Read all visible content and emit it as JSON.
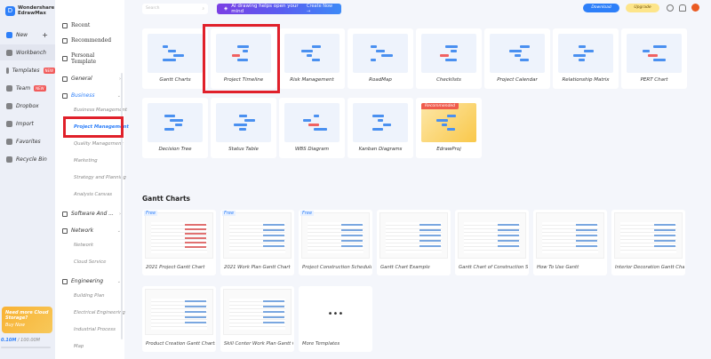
{
  "app": {
    "brand_line1": "Wondershare",
    "brand_line2": "EdrawMax"
  },
  "sidebar": {
    "new": "New",
    "items": [
      {
        "label": "Workbench"
      },
      {
        "label": "Templates",
        "badge": "NEW"
      },
      {
        "label": "Team",
        "badge": "NEW"
      },
      {
        "label": "Dropbox"
      },
      {
        "label": "Import"
      },
      {
        "label": "Favorites"
      },
      {
        "label": "Recycle Bin"
      }
    ],
    "promo": {
      "title": "Need more Cloud Storage?",
      "cta": "Buy Now"
    },
    "storage_used": "0.10M",
    "storage_total": "/ 100.00M"
  },
  "subnav": {
    "top": [
      "Recent",
      "Recommended",
      "Personal Template"
    ],
    "categories": [
      {
        "label": "General"
      },
      {
        "label": "Business",
        "children": [
          "Business Management",
          "Project Management",
          "Quality Management",
          "Marketing",
          "Strategy and Planning",
          "Analysis Canvas"
        ]
      },
      {
        "label": "Software And ..."
      },
      {
        "label": "Network",
        "children": [
          "Network",
          "Cloud Service"
        ]
      },
      {
        "label": "Engineering",
        "children": [
          "Building Plan",
          "Electrical Engineering",
          "Industrial Process",
          "Map"
        ]
      }
    ]
  },
  "topbar": {
    "search_placeholder": "Search",
    "ai_banner": "AI drawing helps open your mind",
    "ai_cta": "Create Now →",
    "download": "Download",
    "upgrade": "Upgrade"
  },
  "templates": [
    "Gantt Charts",
    "Project Timeline",
    "Risk Management",
    "RoadMap",
    "Checklists",
    "Project Calendar",
    "Relationship Matrix",
    "PERT Chart",
    "Decision Tree",
    "Status Table",
    "WBS Diagram",
    "Kanban Diagrams",
    "EdrawProj"
  ],
  "recommended_badge": "Recommended",
  "gantt": {
    "title": "Gantt Charts",
    "free_label": "Free",
    "items": [
      {
        "label": "2021 Project Gantt Chart",
        "free": true
      },
      {
        "label": "2021 Work Plan Gantt Chart",
        "free": true
      },
      {
        "label": "Project Construction Schedule",
        "free": true
      },
      {
        "label": "Gantt Chart Example"
      },
      {
        "label": "Gantt Chart of Construction Sc..."
      },
      {
        "label": "How To Use Gantt"
      },
      {
        "label": "Interior Decoration Gantt Chart"
      },
      {
        "label": "Product Creation Gantt Charts"
      },
      {
        "label": "Skill Center Work Plan Gantt C..."
      },
      {
        "label": "More Templates"
      }
    ]
  },
  "colors": {
    "accent": "#2d7ff9",
    "highlight": "#e0202a"
  }
}
